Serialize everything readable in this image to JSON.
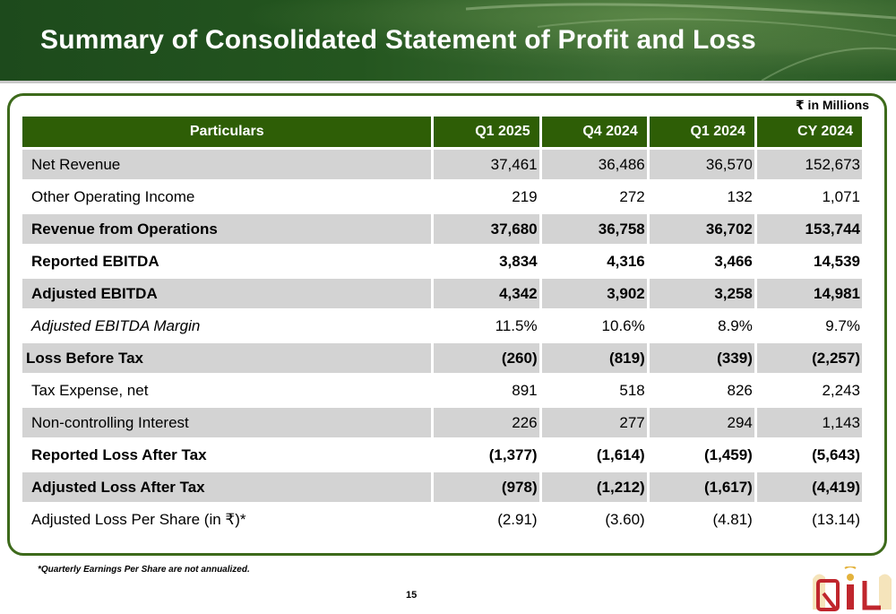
{
  "slide": {
    "title": "Summary of Consolidated Statement of Profit and Loss",
    "units": "₹ in Millions",
    "footnote": "*Quarterly Earnings Per Share are not annualized.",
    "page_number": "15",
    "logo_text": "RIL"
  },
  "table": {
    "headers": [
      "Particulars",
      "Q1 2025",
      "Q4 2024",
      "Q1 2024",
      "CY 2024"
    ],
    "rows": [
      {
        "label": "Net Revenue",
        "values": [
          "37,461",
          "36,486",
          "36,570",
          "152,673"
        ]
      },
      {
        "label": "Other Operating Income",
        "values": [
          "219",
          "272",
          "132",
          "1,071"
        ]
      },
      {
        "label": "Revenue from Operations",
        "values": [
          "37,680",
          "36,758",
          "36,702",
          "153,744"
        ]
      },
      {
        "label": "Reported EBITDA",
        "values": [
          "3,834",
          "4,316",
          "3,466",
          "14,539"
        ]
      },
      {
        "label": "Adjusted EBITDA",
        "values": [
          "4,342",
          "3,902",
          "3,258",
          "14,981"
        ]
      },
      {
        "label": "Adjusted EBITDA Margin",
        "values": [
          "11.5%",
          "10.6%",
          "8.9%",
          "9.7%"
        ]
      },
      {
        "label": "Loss Before Tax",
        "values": [
          "(260)",
          "(819)",
          "(339)",
          "(2,257)"
        ]
      },
      {
        "label": "Tax Expense, net",
        "values": [
          "891",
          "518",
          "826",
          "2,243"
        ]
      },
      {
        "label": "Non-controlling Interest",
        "values": [
          "226",
          "277",
          "294",
          "1,143"
        ]
      },
      {
        "label": "Reported Loss After Tax",
        "values": [
          "(1,377)",
          "(1,614)",
          "(1,459)",
          "(5,643)"
        ]
      },
      {
        "label": "Adjusted Loss After Tax",
        "values": [
          "(978)",
          "(1,212)",
          "(1,617)",
          "(4,419)"
        ]
      },
      {
        "label": "Adjusted Loss Per Share (in ₹)*",
        "values": [
          "(2.91)",
          "(3.60)",
          "(4.81)",
          "(13.14)"
        ]
      }
    ]
  },
  "colors": {
    "header_green": "#2e5e06",
    "frame_green": "#3d6a1b",
    "row_shade": "#d3d3d3",
    "logo_red": "#c0262d",
    "logo_gold": "#e3b23c"
  }
}
